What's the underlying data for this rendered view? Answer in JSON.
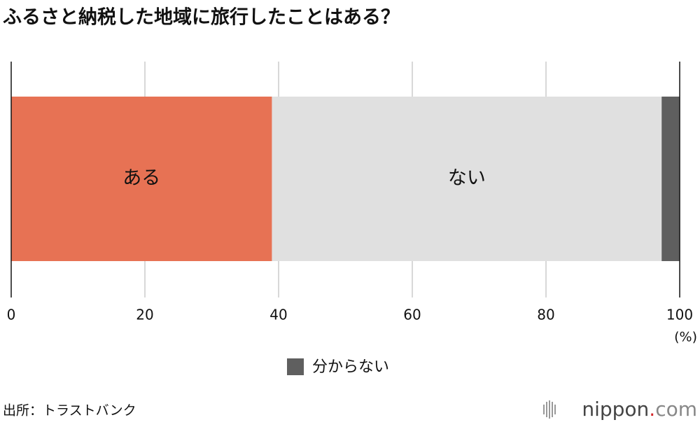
{
  "chart_data": {
    "type": "stacked-bar",
    "title": "ふるさと納税した地域に旅行したことはある？",
    "series": [
      {
        "name": "ある",
        "color": "#e77254",
        "values": [
          39
        ],
        "label_position": "inside"
      },
      {
        "name": "ない",
        "color": "#e0e0e0",
        "values": [
          58.3
        ],
        "label_position": "inside"
      },
      {
        "name": "分からない",
        "color": "#5f5f5f",
        "values": [
          2.7
        ],
        "label_position": "legend"
      }
    ],
    "xlim": [
      0,
      100
    ],
    "xticks": [
      0,
      20,
      40,
      60,
      80,
      100
    ],
    "x_unit": "(%)",
    "grid": true
  },
  "source": "出所：トラストバンク",
  "logo": [
    "nippon",
    ".",
    "com"
  ]
}
